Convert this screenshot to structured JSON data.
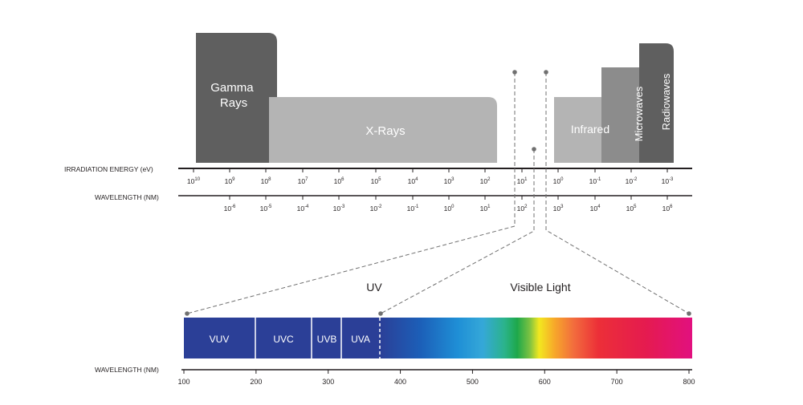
{
  "bands": {
    "gamma": "Gamma Rays",
    "xrays": "X-Rays",
    "infrared": "Infrared",
    "microwaves": "Microwaves",
    "radiowaves": "Radiowaves"
  },
  "axes": {
    "energy_label": "IRRADIATION ENERGY (eV)",
    "wavelength_label": "WAVELENGTH (NM)",
    "energy_ticks": [
      {
        "b": "10",
        "e": "10"
      },
      {
        "b": "10",
        "e": "9"
      },
      {
        "b": "10",
        "e": "8"
      },
      {
        "b": "10",
        "e": "7"
      },
      {
        "b": "10",
        "e": "6"
      },
      {
        "b": "10",
        "e": "5"
      },
      {
        "b": "10",
        "e": "4"
      },
      {
        "b": "10",
        "e": "3"
      },
      {
        "b": "10",
        "e": "2"
      },
      {
        "b": "10",
        "e": "1"
      },
      {
        "b": "10",
        "e": "0"
      },
      {
        "b": "10",
        "e": "-1"
      },
      {
        "b": "10",
        "e": "-2"
      },
      {
        "b": "10",
        "e": "-3"
      }
    ],
    "wavelength_ticks": [
      {
        "b": "10",
        "e": "-6"
      },
      {
        "b": "10",
        "e": "-5"
      },
      {
        "b": "10",
        "e": "-4"
      },
      {
        "b": "10",
        "e": "-3"
      },
      {
        "b": "10",
        "e": "-2"
      },
      {
        "b": "10",
        "e": "-1"
      },
      {
        "b": "10",
        "e": "0"
      },
      {
        "b": "10",
        "e": "1"
      },
      {
        "b": "10",
        "e": "2"
      },
      {
        "b": "10",
        "e": "3"
      },
      {
        "b": "10",
        "e": "4"
      },
      {
        "b": "10",
        "e": "5"
      },
      {
        "b": "10",
        "e": "6"
      }
    ]
  },
  "zoom": {
    "uv_label": "UV",
    "visible_label": "Visible Light",
    "segments": [
      "VUV",
      "UVC",
      "UVB",
      "UVA"
    ],
    "axis_label": "WAVELENGTH (NM)",
    "ticks": [
      "100",
      "200",
      "300",
      "400",
      "500",
      "600",
      "700",
      "800"
    ]
  },
  "colors": {
    "gamma": "#5f5f5f",
    "xrays": "#b4b4b4",
    "infrared": "#b4b4b4",
    "microwaves": "#8c8c8c",
    "radiowaves": "#5f5f5f",
    "uv_blue": "#2b3f97",
    "axis": "#231f20"
  }
}
